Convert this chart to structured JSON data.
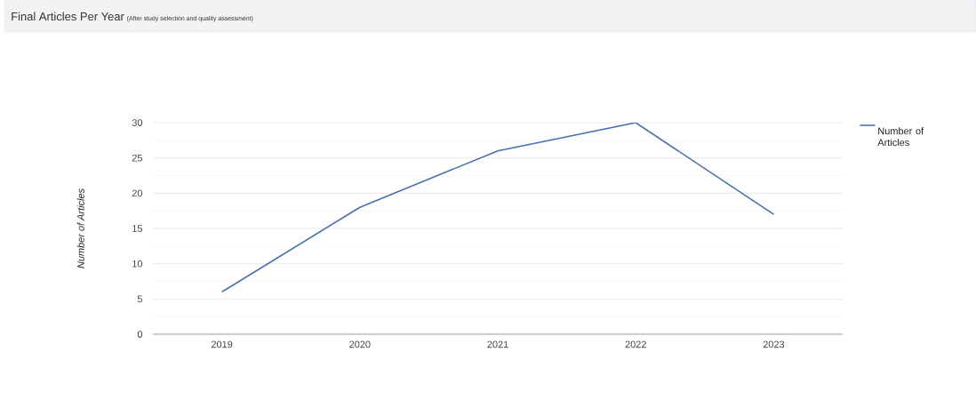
{
  "chart_data": {
    "type": "line",
    "title": "Final Articles Per Year",
    "subtitle": "(After study selection and quality assessment)",
    "ylabel": "Number of Articles",
    "categories": [
      "2019",
      "2020",
      "2021",
      "2022",
      "2023"
    ],
    "series": [
      {
        "name": "Number of Articles",
        "color": "#4a6fb0",
        "values": [
          6,
          18,
          26,
          30,
          17
        ]
      }
    ],
    "ylim": [
      0,
      30
    ],
    "yticks": [
      0,
      5,
      10,
      15,
      20,
      25,
      30
    ],
    "grid": "y",
    "legend": "top right",
    "marker": "none",
    "line_style": "solid"
  }
}
